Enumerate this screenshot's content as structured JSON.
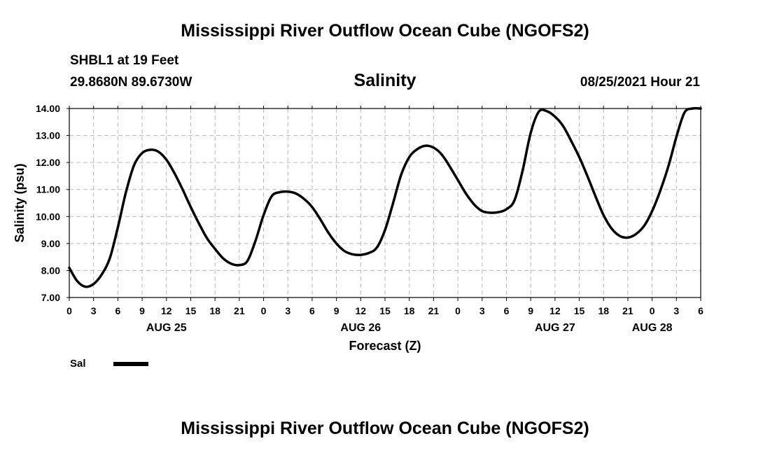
{
  "header": {
    "title_top": "Mississippi River Outflow Ocean Cube (NGOFS2)",
    "station": "SHBL1 at 19 Feet",
    "coords": "29.8680N  89.6730W",
    "timestamp": "08/25/2021 Hour 21"
  },
  "footer": {
    "title_bottom": "Mississippi River Outflow Ocean Cube (NGOFS2)"
  },
  "chart_data": {
    "type": "line",
    "title": "Salinity",
    "xlabel": "Forecast (Z)",
    "ylabel": "Salinity (psu)",
    "ylim": [
      7.0,
      14.0
    ],
    "xlim": [
      0,
      78
    ],
    "x_unit": "hours from 08/25/2021 00Z",
    "grid": true,
    "y_ticks": [
      "7.00",
      "8.00",
      "9.00",
      "10.00",
      "11.00",
      "12.00",
      "13.00",
      "14.00"
    ],
    "x_ticks": [
      "0",
      "3",
      "6",
      "9",
      "12",
      "15",
      "18",
      "21",
      "0",
      "3",
      "6",
      "9",
      "12",
      "15",
      "18",
      "21",
      "0",
      "3",
      "6",
      "9",
      "12",
      "15",
      "18",
      "21",
      "0",
      "3",
      "6"
    ],
    "date_labels": [
      {
        "label": "AUG 25",
        "hour": 12
      },
      {
        "label": "AUG 26",
        "hour": 36
      },
      {
        "label": "AUG 27",
        "hour": 60
      },
      {
        "label": "AUG 28",
        "hour": 72
      }
    ],
    "legend": {
      "label": "Sal",
      "color": "#000000"
    },
    "series": [
      {
        "name": "Sal",
        "color": "#000000",
        "x": [
          0,
          1,
          2,
          3,
          4,
          5,
          6,
          7,
          8,
          9,
          10,
          11,
          12,
          13,
          14,
          15,
          16,
          17,
          18,
          19,
          20,
          21,
          22,
          23,
          24,
          25,
          26,
          27,
          28,
          29,
          30,
          31,
          32,
          33,
          34,
          35,
          36,
          37,
          38,
          39,
          40,
          41,
          42,
          43,
          44,
          45,
          46,
          47,
          48,
          49,
          50,
          51,
          52,
          53,
          54,
          55,
          56,
          57,
          58,
          59,
          60,
          61,
          62,
          63,
          64,
          65,
          66,
          67,
          68,
          69,
          70,
          71,
          72,
          73,
          74,
          75,
          76,
          77,
          78
        ],
        "values": [
          8.1,
          7.6,
          7.4,
          7.5,
          7.85,
          8.45,
          9.6,
          10.9,
          11.9,
          12.35,
          12.47,
          12.4,
          12.1,
          11.6,
          11.0,
          10.35,
          9.75,
          9.2,
          8.8,
          8.45,
          8.25,
          8.2,
          8.35,
          9.1,
          10.05,
          10.75,
          10.9,
          10.92,
          10.85,
          10.65,
          10.35,
          9.9,
          9.4,
          9.0,
          8.72,
          8.6,
          8.58,
          8.65,
          8.85,
          9.5,
          10.5,
          11.55,
          12.2,
          12.5,
          12.62,
          12.55,
          12.3,
          11.85,
          11.35,
          10.85,
          10.45,
          10.2,
          10.14,
          10.16,
          10.27,
          10.6,
          11.7,
          13.1,
          13.88,
          13.9,
          13.7,
          13.35,
          12.8,
          12.2,
          11.5,
          10.75,
          10.05,
          9.55,
          9.28,
          9.22,
          9.35,
          9.65,
          10.2,
          10.95,
          11.85,
          12.95,
          13.85,
          14.0,
          14.0
        ]
      }
    ]
  }
}
